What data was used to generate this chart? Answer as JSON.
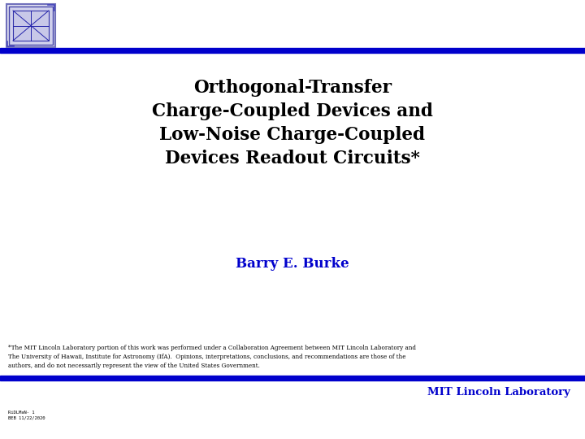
{
  "title_line1": "Orthogonal-Transfer",
  "title_line2": "Charge-Coupled Devices and",
  "title_line3": "Low-Noise Charge-Coupled",
  "title_line4": "Devices Readout Circuits*",
  "author": "Barry E. Burke",
  "footnote_line1": "*The MIT Lincoln Laboratory portion of this work was performed under a Collaboration Agreement between MIT Lincoln Laboratory and",
  "footnote_line2": "The University of Hawaii, Institute for Astronomy (IfA).  Opinions, interpretations, conclusions, and recommendations are those of the",
  "footnote_line3": "authors, and do not necessarily represent the view of the United States Government.",
  "brand": "MIT Lincoln Laboratory",
  "slide_id_line1": "RiDLMaN- 1",
  "slide_id_line2": "BEB 11/22/2020",
  "blue_color": "#0000CC",
  "background": "#FFFFFF"
}
